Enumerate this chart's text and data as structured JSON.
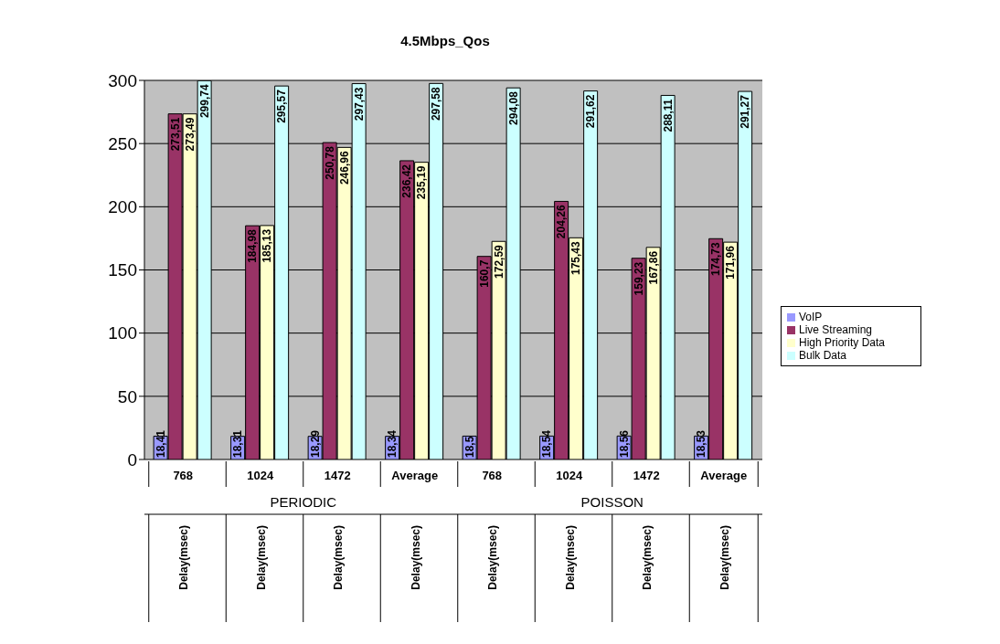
{
  "chart_data": {
    "type": "bar",
    "title": "4.5Mbps_Qos",
    "categories": [
      "768",
      "1024",
      "1472",
      "Average",
      "768",
      "1024",
      "1472",
      "Average"
    ],
    "series": [
      {
        "name": "VoIP",
        "color": "#9999ff",
        "values": [
          18.41,
          18.31,
          18.29,
          18.34,
          18.5,
          18.54,
          18.56,
          18.53
        ],
        "value_labels": [
          "18,41",
          "18,31",
          "18,29",
          "18,34",
          "18,5",
          "18,54",
          "18,56",
          "18,53"
        ]
      },
      {
        "name": "Live Streaming",
        "color": "#993366",
        "values": [
          273.51,
          184.98,
          250.78,
          236.42,
          160.7,
          204.26,
          159.23,
          174.73
        ],
        "value_labels": [
          "273,51",
          "184,98",
          "250,78",
          "236,42",
          "160,7",
          "204,26",
          "159,23",
          "174,73"
        ]
      },
      {
        "name": "High Priority Data",
        "color": "#ffffcc",
        "values": [
          273.49,
          185.13,
          246.96,
          235.19,
          172.59,
          175.43,
          167.86,
          171.96
        ],
        "value_labels": [
          "273,49",
          "185,13",
          "246,96",
          "235,19",
          "172,59",
          "175,43",
          "167,86",
          "171,96"
        ]
      },
      {
        "name": "Bulk Data",
        "color": "#ccffff",
        "values": [
          299.74,
          295.57,
          297.43,
          297.58,
          294.08,
          291.62,
          288.11,
          291.27
        ],
        "value_labels": [
          "299,74",
          "295,57",
          "297,43",
          "297,58",
          "294,08",
          "291,62",
          "288,11",
          "291,27"
        ]
      }
    ],
    "annotations": [
      "Delay(msec)",
      "PERIODIC",
      "POISSON"
    ],
    "ylim": [
      0,
      300
    ],
    "yticks": [
      0,
      50,
      100,
      150,
      200,
      250,
      300
    ],
    "grid": "y",
    "legend": "right"
  }
}
